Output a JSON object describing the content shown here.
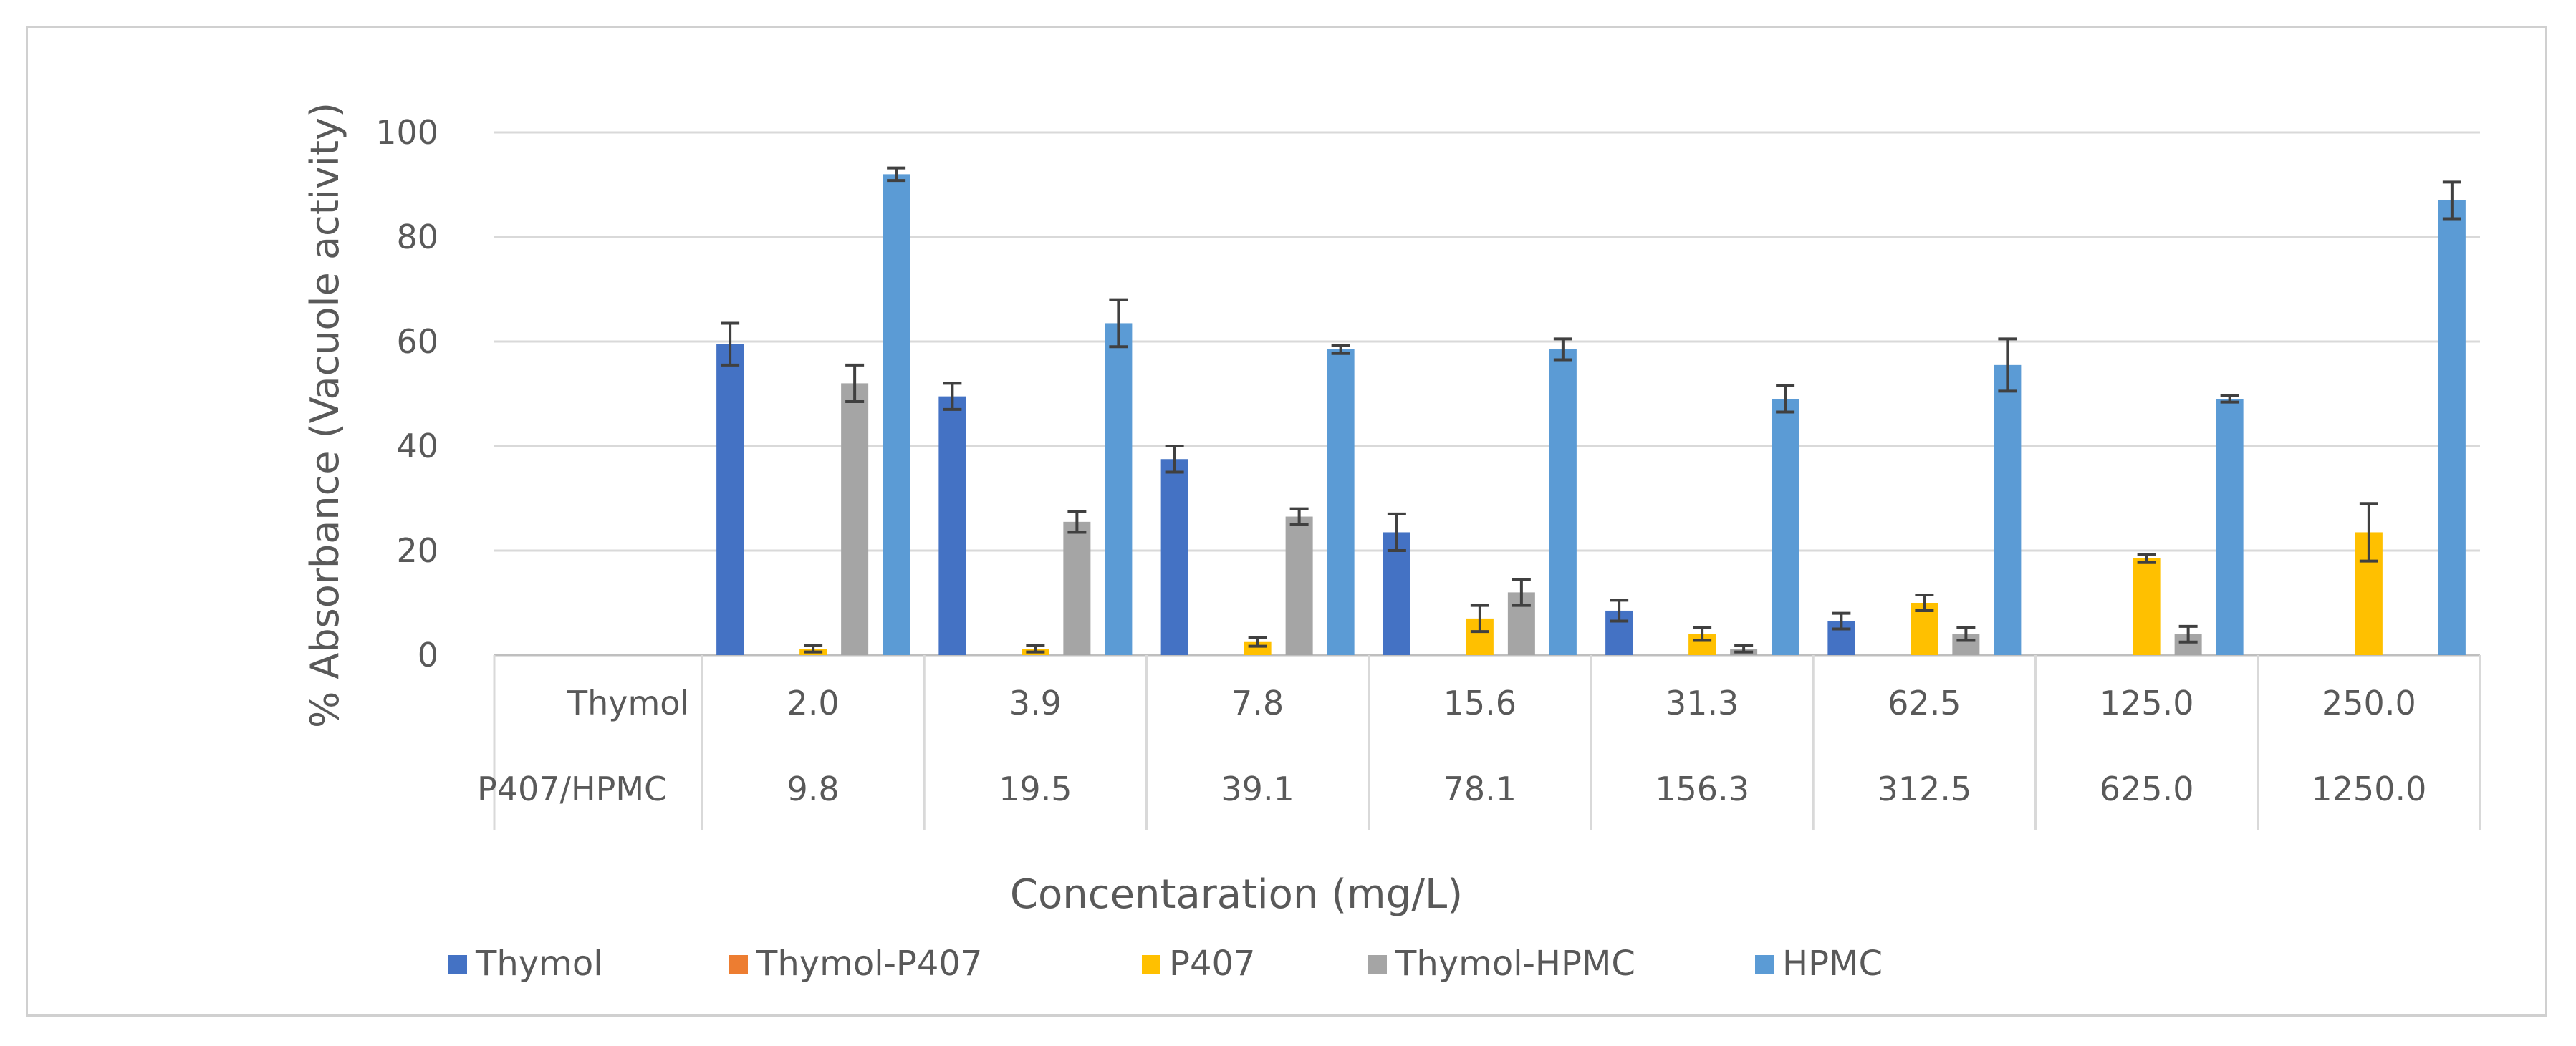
{
  "chart_data": {
    "type": "bar",
    "ylabel": "% Absorbance (Vacuole activity)",
    "xlabel": "Concentaration (mg/L)",
    "ylim": [
      0,
      100
    ],
    "yticks": [
      0,
      20,
      40,
      60,
      80,
      100
    ],
    "grid": true,
    "legend_position": "bottom",
    "table_rows": [
      {
        "label": "Thymol",
        "values": [
          "2.0",
          "3.9",
          "7.8",
          "15.6",
          "31.3",
          "62.5",
          "125.0",
          "250.0"
        ]
      },
      {
        "label": "P407/HPMC",
        "values": [
          "9.8",
          "19.5",
          "39.1",
          "78.1",
          "156.3",
          "312.5",
          "625.0",
          "1250.0"
        ]
      }
    ],
    "series": [
      {
        "name": "Thymol",
        "color": "#4472c4",
        "values": [
          59.5,
          49.5,
          37.5,
          23.5,
          8.5,
          6.5,
          null,
          null
        ],
        "errors": [
          4.0,
          2.5,
          2.5,
          3.5,
          2.0,
          1.5,
          null,
          null
        ]
      },
      {
        "name": "Thymol-P407",
        "color": "#ed7d31",
        "values": [
          null,
          null,
          null,
          null,
          null,
          null,
          null,
          null
        ],
        "errors": [
          null,
          null,
          null,
          null,
          null,
          null,
          null,
          null
        ]
      },
      {
        "name": "P407",
        "color": "#ffc000",
        "values": [
          1.2,
          1.2,
          2.5,
          7.0,
          4.0,
          10.0,
          18.5,
          23.5
        ],
        "errors": [
          0.6,
          0.6,
          0.8,
          2.5,
          1.2,
          1.5,
          0.8,
          5.5
        ]
      },
      {
        "name": "Thymol-HPMC",
        "color": "#a5a5a5",
        "values": [
          52.0,
          25.5,
          26.5,
          12.0,
          1.2,
          4.0,
          4.0,
          null
        ],
        "errors": [
          3.5,
          2.0,
          1.5,
          2.5,
          0.6,
          1.2,
          1.5,
          null
        ]
      },
      {
        "name": "HPMC",
        "color": "#5b9bd5",
        "values": [
          92.0,
          63.5,
          58.5,
          58.5,
          49.0,
          55.5,
          49.0,
          87.0
        ],
        "errors": [
          1.2,
          4.5,
          0.8,
          2.0,
          2.5,
          5.0,
          0.6,
          3.5
        ]
      }
    ]
  }
}
